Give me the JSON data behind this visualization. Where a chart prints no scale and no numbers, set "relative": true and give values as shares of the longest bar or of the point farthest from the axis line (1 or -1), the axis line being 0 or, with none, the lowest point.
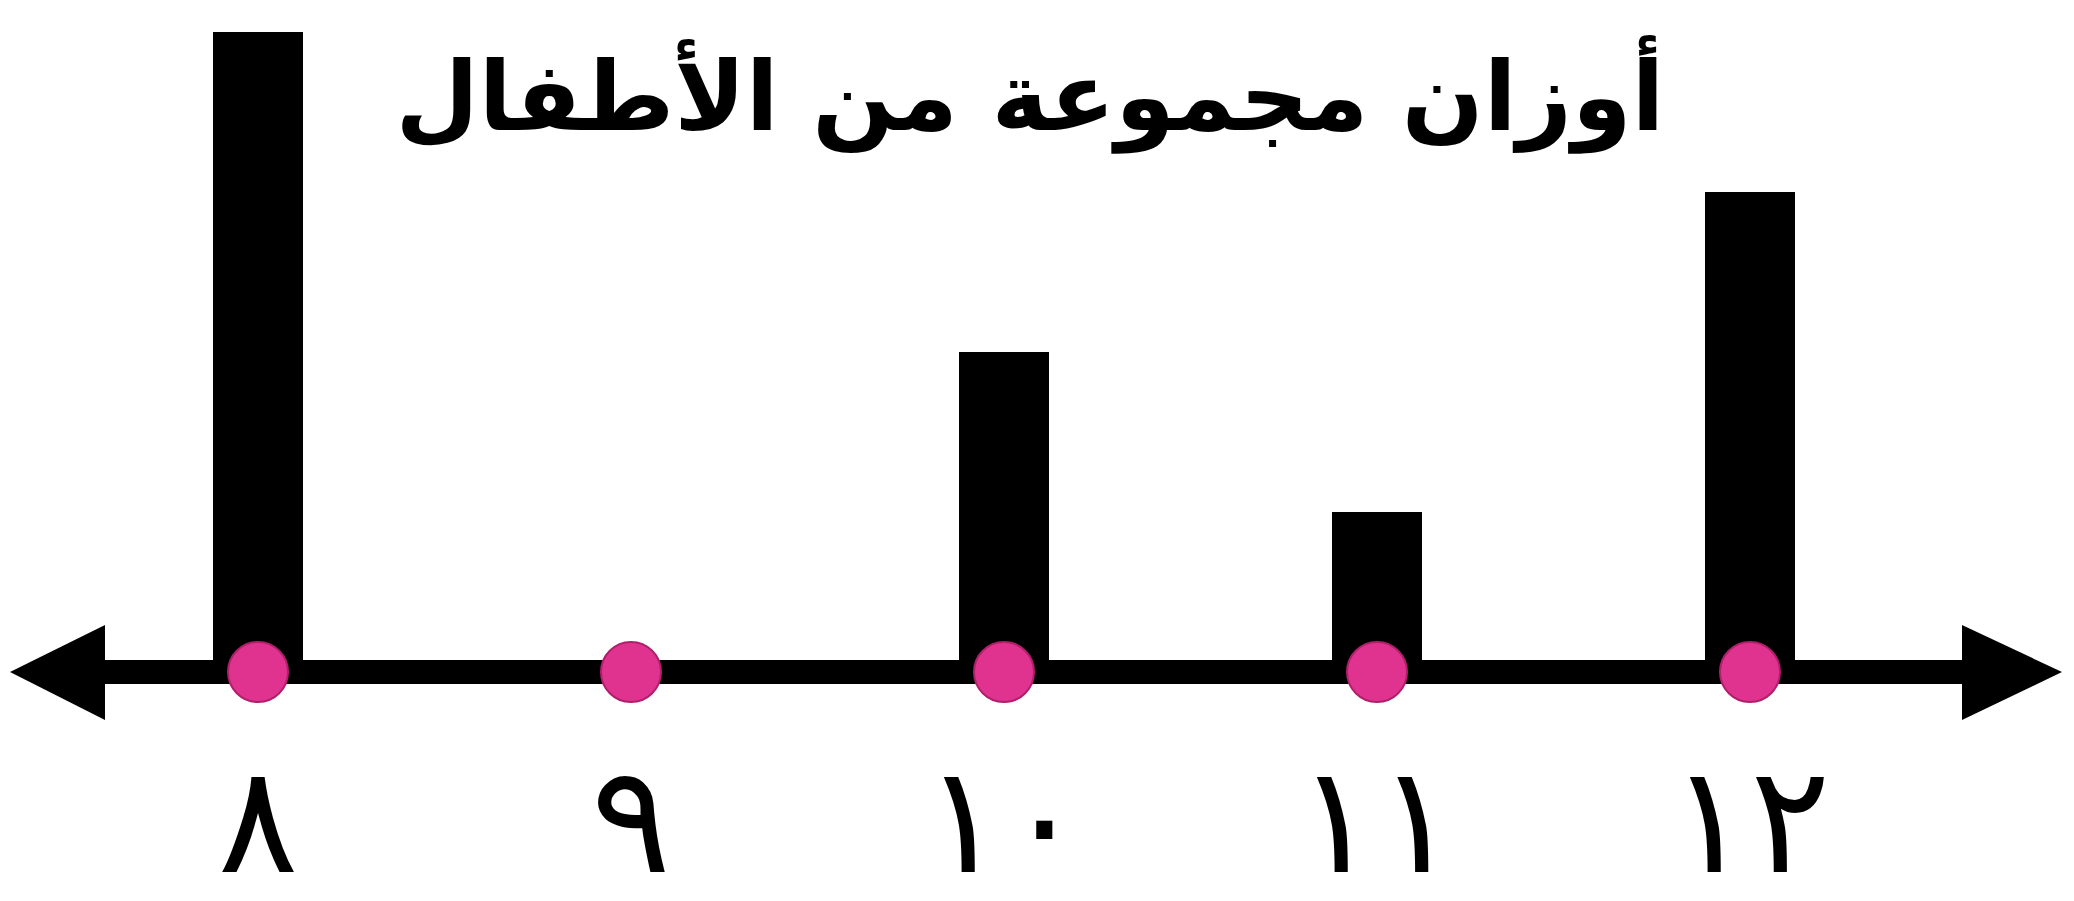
{
  "chart_data": {
    "type": "bar",
    "title": "أوزان مجموعة من الأطفال",
    "categories": [
      "٨",
      "٩",
      "١٠",
      "١١",
      "١٢"
    ],
    "series": [
      {
        "color": "#000000",
        "values": [
          1,
          0,
          0.5,
          0.25,
          0.75
        ]
      },
      {
        "type": "scatter",
        "color": "#e0338f",
        "values": [
          0,
          0,
          0,
          0,
          0
        ]
      }
    ],
    "marker": "circle",
    "relative": true
  }
}
